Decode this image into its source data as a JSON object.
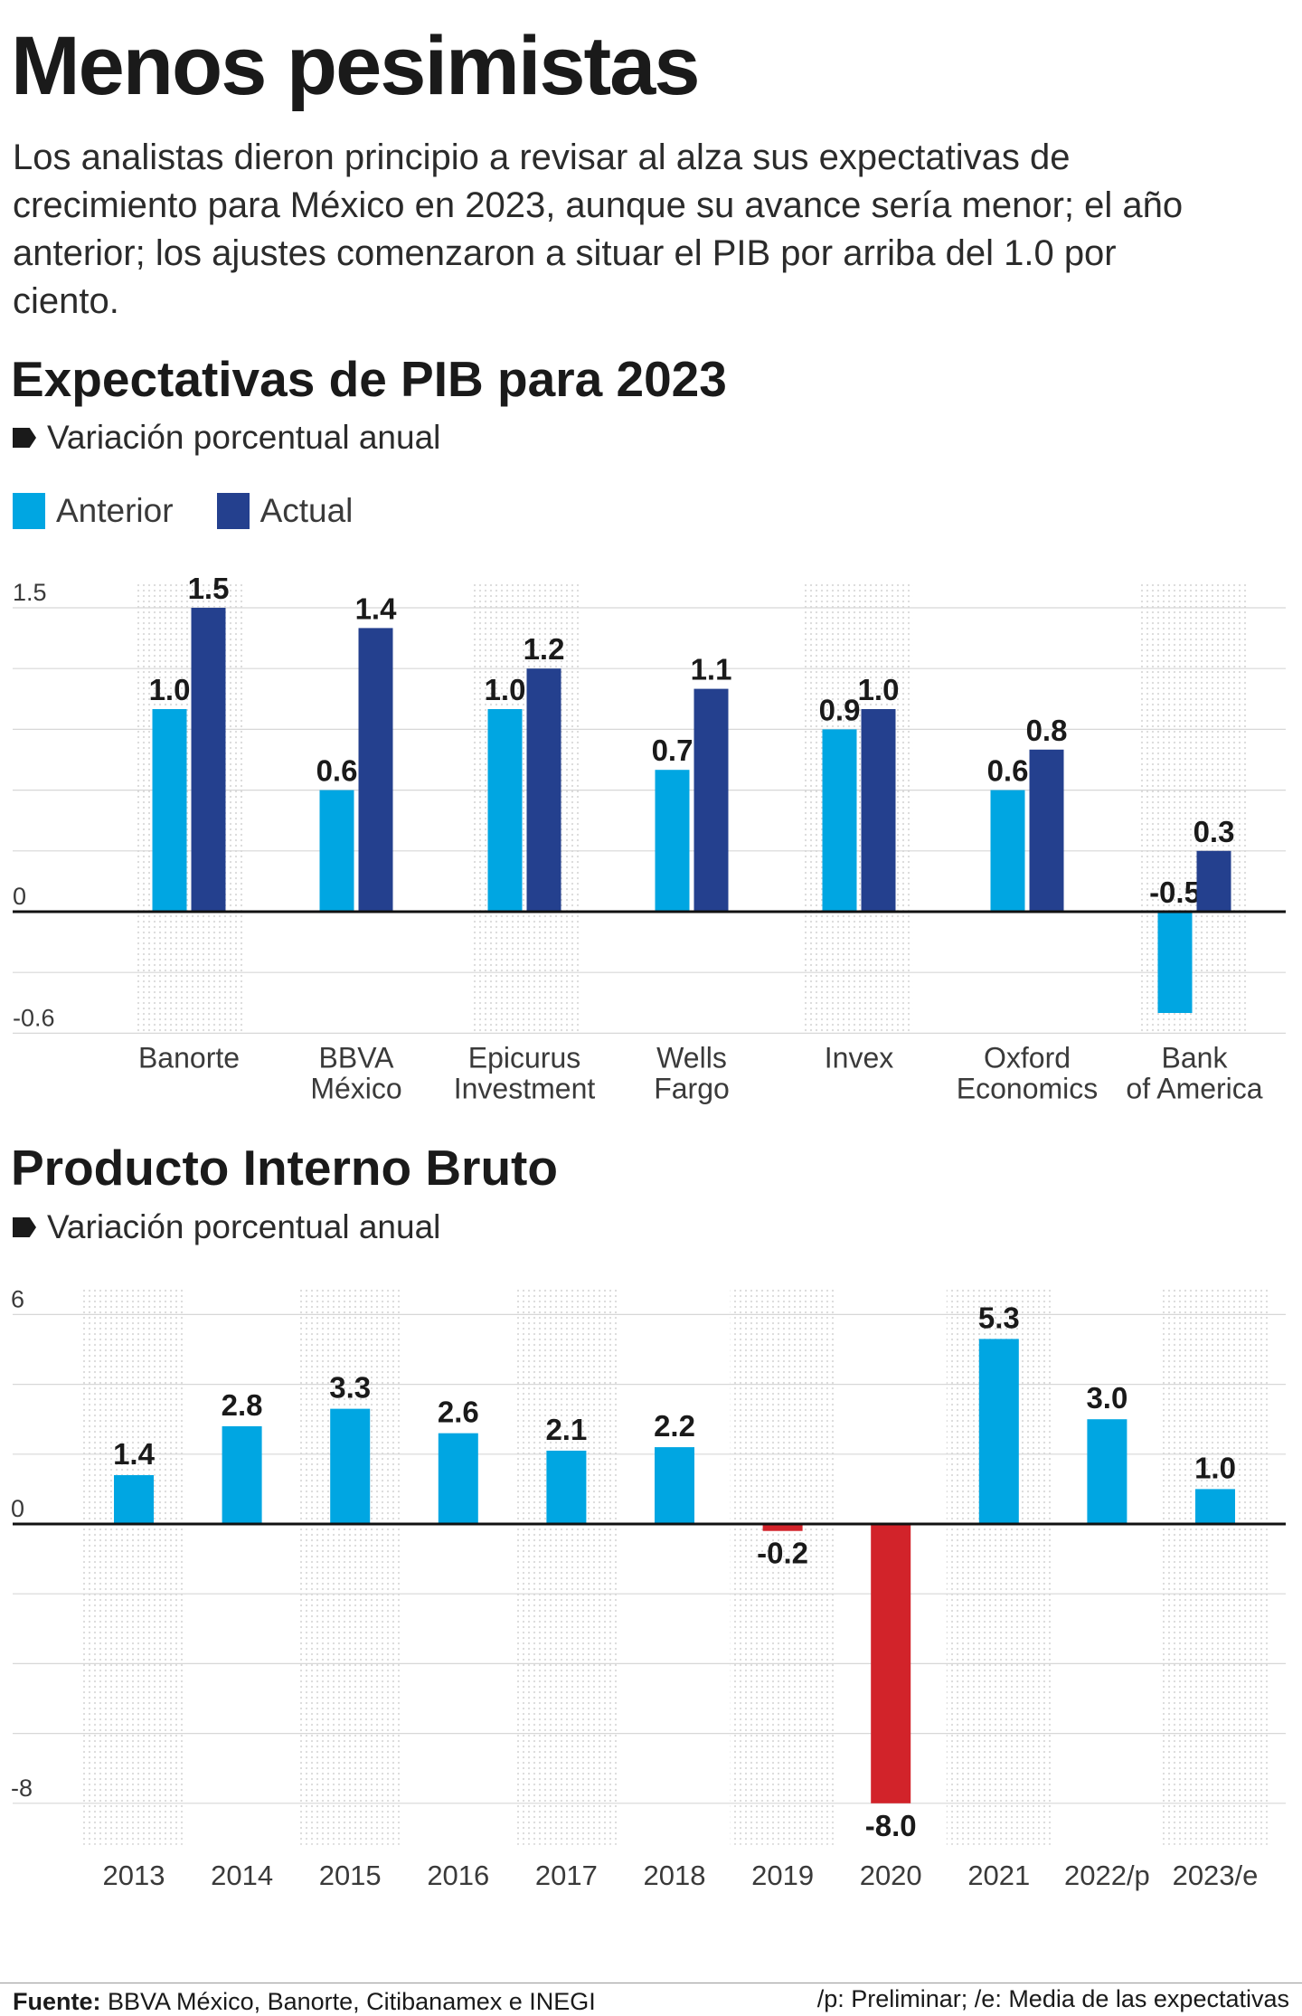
{
  "title": "Menos pesimistas",
  "lead": "Los analistas dieron principio a revisar al alza sus expectativas de crecimiento para México en 2023, aunque su avance sería menor; el año anterior; los ajustes comenzaron a situar el PIB por arriba del 1.0 por ciento.",
  "colors": {
    "anterior": "#00a6e2",
    "actual": "#24408e",
    "negative": "#d2232a",
    "text": "#1a1a1a",
    "grid": "#d7d7d7"
  },
  "icons": {
    "subtitle_marker": "tag-marker-icon"
  },
  "section1": {
    "heading": "Expectativas de PIB para 2023",
    "subtitle": "Variación porcentual anual",
    "legend": [
      "Anterior",
      "Actual"
    ]
  },
  "section2": {
    "heading": "Producto Interno Bruto",
    "subtitle": "Variación porcentual anual"
  },
  "footer": {
    "source_label": "Fuente:",
    "source_text": "BBVA México, Banorte, Citibanamex e INEGI",
    "note": "/p: Preliminar; /e: Media de las expectativas"
  },
  "chart_data": [
    {
      "type": "bar",
      "title": "Expectativas de PIB para 2023",
      "subtitle": "Variación porcentual anual",
      "categories": [
        [
          "Banorte"
        ],
        [
          "BBVA",
          "México"
        ],
        [
          "Epicurus",
          "Investment"
        ],
        [
          "Wells",
          "Fargo"
        ],
        [
          "Invex"
        ],
        [
          "Oxford",
          "Economics"
        ],
        [
          "Bank",
          "of America"
        ]
      ],
      "series": [
        {
          "name": "Anterior",
          "values": [
            1.0,
            0.6,
            1.0,
            0.7,
            0.9,
            0.6,
            -0.5
          ]
        },
        {
          "name": "Actual",
          "values": [
            1.5,
            1.4,
            1.2,
            1.1,
            1.0,
            0.8,
            0.3
          ]
        }
      ],
      "value_labels": [
        [
          "1.0",
          "0.6",
          "1.0",
          "0.7",
          "0.9",
          "0.6",
          "-0.5"
        ],
        [
          "1.5",
          "1.4",
          "1.2",
          "1.1",
          "1.0",
          "0.8",
          "0.3"
        ]
      ],
      "ylim": [
        -0.6,
        1.5
      ],
      "yticks": [
        1.5,
        0,
        -0.6
      ],
      "ytick_labels": [
        "1.5",
        "0",
        "-0.6"
      ],
      "grid": true,
      "legend_position": "top-left"
    },
    {
      "type": "bar",
      "title": "Producto Interno Bruto",
      "subtitle": "Variación porcentual anual",
      "categories": [
        "2013",
        "2014",
        "2015",
        "2016",
        "2017",
        "2018",
        "2019",
        "2020",
        "2021",
        "2022/p",
        "2023/e"
      ],
      "values": [
        1.4,
        2.8,
        3.3,
        2.6,
        2.1,
        2.2,
        -0.2,
        -8.0,
        5.3,
        3.0,
        1.0
      ],
      "value_labels": [
        "1.4",
        "2.8",
        "3.3",
        "2.6",
        "2.1",
        "2.2",
        "-0.2",
        "-8.0",
        "5.3",
        "3.0",
        "1.0"
      ],
      "ylim": [
        -8,
        6
      ],
      "yticks": [
        6,
        0,
        -8
      ],
      "ytick_labels": [
        "6",
        "0",
        "-8"
      ],
      "grid": true,
      "legend_position": "none"
    }
  ]
}
